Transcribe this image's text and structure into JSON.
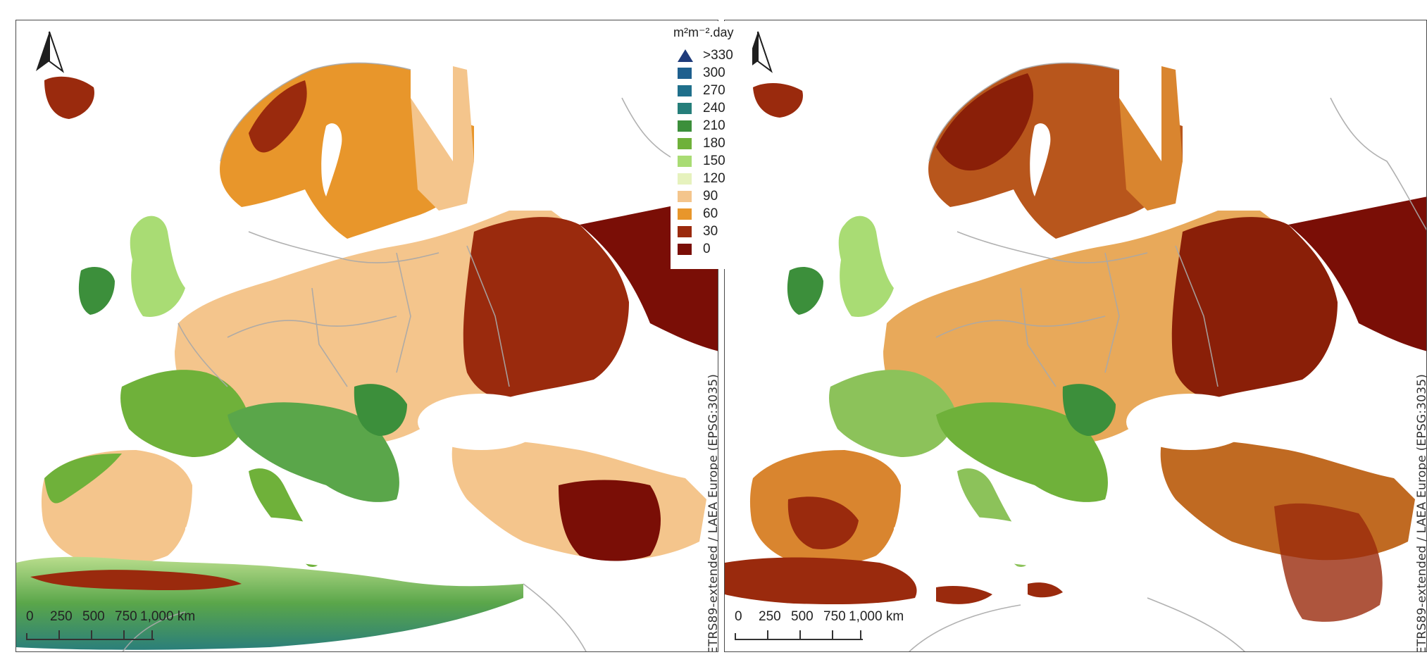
{
  "legend": {
    "title": "m²m⁻².day",
    "items": [
      {
        "label": ">330",
        "color": "#1f3b7a",
        "shape": "triangle"
      },
      {
        "label": "300",
        "color": "#1e5f8e",
        "shape": "box"
      },
      {
        "label": "270",
        "color": "#1f6f8b",
        "shape": "box"
      },
      {
        "label": "240",
        "color": "#257e7a",
        "shape": "box"
      },
      {
        "label": "210",
        "color": "#3c8f3b",
        "shape": "box"
      },
      {
        "label": "180",
        "color": "#6fb13a",
        "shape": "box"
      },
      {
        "label": "150",
        "color": "#a9dc74",
        "shape": "box"
      },
      {
        "label": "120",
        "color": "#e6f2bd",
        "shape": "box"
      },
      {
        "label": "90",
        "color": "#f4c58c",
        "shape": "box"
      },
      {
        "label": "60",
        "color": "#e8962b",
        "shape": "box"
      },
      {
        "label": "30",
        "color": "#9a2a0d",
        "shape": "box"
      },
      {
        "label": "0",
        "color": "#7a0e06",
        "shape": "box"
      }
    ]
  },
  "panels": [
    {
      "id": "left",
      "crs_label": "ETRS89-extended / LAEA Europe   (EPSG:3035)",
      "scale_labels": [
        "0",
        "250",
        "500",
        "750",
        "1,000 km"
      ],
      "icons": {
        "north_arrow": "north-arrow-icon"
      }
    },
    {
      "id": "right",
      "crs_label": "ETRS89-extended / LAEA Europe   (EPSG:3035)",
      "scale_labels": [
        "0",
        "250",
        "500",
        "750",
        "1,000 km"
      ],
      "icons": {
        "north_arrow": "north-arrow-icon"
      }
    }
  ]
}
